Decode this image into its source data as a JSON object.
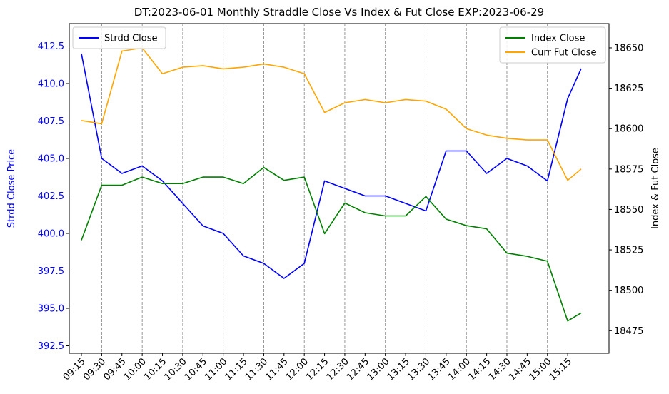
{
  "chart_data": {
    "type": "line",
    "title": "DT:2023-06-01 Monthly Straddle Close Vs Index & Fut Close EXP:2023-06-29",
    "xlabel": "",
    "y1label": "Strdd Close Price",
    "y2label": "Index & Fut Close",
    "x_ticks": [
      "09:15",
      "09:30",
      "09:45",
      "10:00",
      "10:15",
      "10:30",
      "10:45",
      "11:00",
      "11:15",
      "11:30",
      "11:45",
      "12:00",
      "12:15",
      "12:30",
      "12:45",
      "13:00",
      "13:15",
      "13:30",
      "13:45",
      "14:00",
      "14:15",
      "14:30",
      "14:45",
      "15:00",
      "15:15"
    ],
    "y1_ticks": [
      "392.5",
      "395.0",
      "397.5",
      "400.0",
      "402.5",
      "405.0",
      "407.5",
      "410.0",
      "412.5"
    ],
    "y2_ticks": [
      "18475",
      "18500",
      "18525",
      "18550",
      "18575",
      "18600",
      "18625",
      "18650"
    ],
    "y1_lim": [
      392,
      414
    ],
    "y2_lim": [
      18461,
      18665
    ],
    "grid": "vertical dashed lines at every other 15-min tick from 09:30",
    "legend_left": {
      "position": "top-left",
      "entries": [
        "Strdd Close"
      ]
    },
    "legend_right": {
      "position": "top-right",
      "entries": [
        "Index Close",
        "Curr Fut Close"
      ]
    },
    "x": [
      "09:15",
      "09:30",
      "09:45",
      "10:00",
      "10:15",
      "10:30",
      "10:45",
      "11:00",
      "11:15",
      "11:30",
      "11:45",
      "12:00",
      "12:15",
      "12:30",
      "12:45",
      "13:00",
      "13:15",
      "13:30",
      "13:45",
      "14:00",
      "14:15",
      "14:30",
      "14:45",
      "15:00",
      "15:15",
      "15:25"
    ],
    "series": [
      {
        "name": "Strdd Close",
        "axis": "left",
        "color": "#0000ff",
        "values": [
          412.0,
          405.0,
          404.0,
          404.5,
          403.5,
          402.0,
          400.5,
          400.0,
          398.5,
          398.0,
          397.0,
          398.0,
          403.5,
          403.0,
          402.5,
          402.5,
          402.0,
          401.5,
          405.5,
          405.5,
          404.0,
          405.0,
          404.5,
          403.5,
          409.0,
          411.0
        ]
      },
      {
        "name": "Index Close",
        "axis": "right",
        "color": "#008000",
        "values": [
          18531,
          18565,
          18565,
          18570,
          18566,
          18566,
          18570,
          18570,
          18566,
          18576,
          18568,
          18570,
          18535,
          18554,
          18548,
          18546,
          18546,
          18558,
          18544,
          18540,
          18538,
          18523,
          18521,
          18518,
          18481,
          18486
        ]
      },
      {
        "name": "Curr Fut Close",
        "axis": "right",
        "color": "#ffa500",
        "values": [
          18605,
          18603,
          18648,
          18650,
          18634,
          18638,
          18639,
          18637,
          18638,
          18640,
          18638,
          18634,
          18610,
          18616,
          18618,
          18616,
          18618,
          18617,
          18612,
          18600,
          18596,
          18594,
          18593,
          18593,
          18568,
          18575
        ]
      }
    ]
  }
}
